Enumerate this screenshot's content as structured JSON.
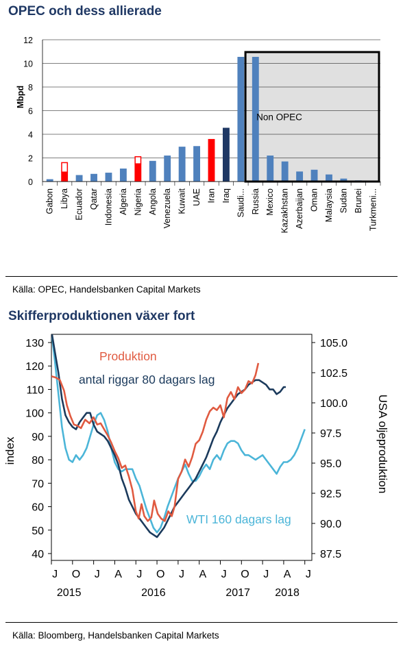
{
  "chart1": {
    "title": "OPEC och dess allierade",
    "source": "Källa: OPEC, Handelsbanken Capital Markets"
  },
  "chart2": {
    "title": "Skifferproduktionen växer fort",
    "source": "Källa: Bloomberg, Handelsbanken Capital Markets"
  },
  "colors": {
    "title": "#1f3864",
    "bar_blue": "#4f81bd",
    "bar_red": "#ff0000",
    "bar_navy": "#1f3864",
    "non_opec_fill": "#e0e0e0",
    "produktion": "#e05a40",
    "riggar": "#1b3a5c",
    "wti": "#4bb5d8"
  },
  "chart_data": [
    {
      "type": "bar",
      "ylabel": "Mbpd",
      "ylim": [
        0,
        12
      ],
      "yticks": [
        0,
        2,
        4,
        6,
        8,
        10,
        12
      ],
      "grid": true,
      "categories": [
        "Gabon",
        "Libya",
        "Ecuador",
        "Qatar",
        "Indonesia",
        "Algeria",
        "Nigeria",
        "Angola",
        "Venezuela",
        "Kuwait",
        "UAE",
        "Iran",
        "Iraq",
        "Saudi...",
        "Russia",
        "Mexico",
        "Kazakhstan",
        "Azerbaijan",
        "Oman",
        "Malaysia",
        "Sudan",
        "Brunei",
        "Turkmeni..."
      ],
      "values": [
        0.2,
        0.8,
        0.55,
        0.65,
        0.75,
        1.1,
        1.5,
        1.75,
        2.2,
        2.95,
        3.0,
        3.6,
        4.55,
        10.55,
        10.55,
        2.2,
        1.7,
        0.85,
        1.0,
        0.6,
        0.25,
        0.1,
        0.05
      ],
      "bar_colors": [
        "blue",
        "red",
        "blue",
        "blue",
        "blue",
        "blue",
        "red",
        "blue",
        "blue",
        "blue",
        "blue",
        "red",
        "navy",
        "blue",
        "blue",
        "blue",
        "blue",
        "blue",
        "blue",
        "blue",
        "blue",
        "blue",
        "blue"
      ],
      "outlined_capacity": [
        {
          "category": "Libya",
          "value": 1.6
        },
        {
          "category": "Nigeria",
          "value": 2.1
        }
      ],
      "annotation": "Non OPEC",
      "non_opec_start": "Russia"
    },
    {
      "type": "line",
      "ylabel": "index",
      "ylim": [
        40,
        130
      ],
      "yticks": [
        40,
        50,
        60,
        70,
        80,
        90,
        100,
        110,
        120,
        130
      ],
      "y2label": "USA oljeproduktion",
      "y2lim": [
        87.5,
        105.0
      ],
      "y2ticks": [
        "87.5",
        "90.0",
        "92.5",
        "95.0",
        "97.5",
        "100.0",
        "102.5",
        "105.0"
      ],
      "xlim": [
        0,
        37
      ],
      "xticks": [
        {
          "x": 0.5,
          "label": "J"
        },
        {
          "x": 3.5,
          "label": "O"
        },
        {
          "x": 6.5,
          "label": "J"
        },
        {
          "x": 9.5,
          "label": "A"
        },
        {
          "x": 12.5,
          "label": "J"
        },
        {
          "x": 15.5,
          "label": "O"
        },
        {
          "x": 18.5,
          "label": "J"
        },
        {
          "x": 21.5,
          "label": "A"
        },
        {
          "x": 24.5,
          "label": "J"
        },
        {
          "x": 27.5,
          "label": "O"
        },
        {
          "x": 30.5,
          "label": "J"
        },
        {
          "x": 33.5,
          "label": "A"
        },
        {
          "x": 36.5,
          "label": "J"
        }
      ],
      "year_labels": [
        {
          "x": 2.5,
          "label": "2015"
        },
        {
          "x": 14.5,
          "label": "2016"
        },
        {
          "x": 26.5,
          "label": "2017"
        },
        {
          "x": 33.5,
          "label": "2018"
        }
      ],
      "series": [
        {
          "name": "Produktion",
          "color": "produktion",
          "axis": "right",
          "points": [
            [
              0.0,
              102.2
            ],
            [
              0.6,
              102.1
            ],
            [
              1.2,
              101.9
            ],
            [
              1.8,
              101.0
            ],
            [
              2.2,
              99.8
            ],
            [
              2.7,
              98.9
            ],
            [
              3.2,
              98.2
            ],
            [
              3.7,
              98.1
            ],
            [
              4.2,
              97.9
            ],
            [
              4.8,
              98.6
            ],
            [
              5.4,
              98.3
            ],
            [
              6.0,
              98.8
            ],
            [
              6.5,
              98.2
            ],
            [
              7.0,
              98.3
            ],
            [
              7.5,
              97.8
            ],
            [
              8.0,
              97.3
            ],
            [
              8.5,
              96.7
            ],
            [
              9.0,
              96.0
            ],
            [
              9.5,
              95.4
            ],
            [
              10.0,
              94.6
            ],
            [
              10.5,
              94.8
            ],
            [
              11.0,
              93.9
            ],
            [
              11.5,
              92.8
            ],
            [
              12.0,
              91.0
            ],
            [
              12.4,
              90.4
            ],
            [
              12.8,
              91.6
            ],
            [
              13.2,
              90.6
            ],
            [
              13.7,
              90.2
            ],
            [
              14.2,
              90.5
            ],
            [
              14.6,
              91.9
            ],
            [
              15.1,
              90.8
            ],
            [
              15.6,
              90.4
            ],
            [
              16.1,
              90.2
            ],
            [
              16.6,
              91.0
            ],
            [
              17.1,
              90.6
            ],
            [
              17.5,
              91.4
            ],
            [
              18.0,
              93.7
            ],
            [
              18.5,
              94.3
            ],
            [
              19.0,
              95.3
            ],
            [
              19.5,
              94.7
            ],
            [
              20.0,
              95.5
            ],
            [
              20.5,
              96.6
            ],
            [
              21.0,
              96.9
            ],
            [
              21.5,
              97.6
            ],
            [
              22.0,
              98.6
            ],
            [
              22.5,
              99.3
            ],
            [
              23.0,
              99.6
            ],
            [
              23.5,
              99.4
            ],
            [
              24.0,
              99.8
            ],
            [
              24.5,
              98.8
            ],
            [
              25.0,
              100.4
            ],
            [
              25.5,
              100.9
            ],
            [
              26.0,
              100.3
            ],
            [
              26.5,
              101.3
            ],
            [
              27.0,
              100.8
            ],
            [
              27.5,
              101.1
            ],
            [
              28.0,
              101.8
            ],
            [
              28.5,
              101.6
            ],
            [
              29.0,
              102.3
            ],
            [
              29.4,
              103.3
            ]
          ]
        },
        {
          "name": "antal riggar 80 dagars lag",
          "color": "riggar",
          "axis": "left",
          "points": [
            [
              0.0,
              135
            ],
            [
              0.5,
              126
            ],
            [
              1.0,
              117
            ],
            [
              1.5,
              106
            ],
            [
              2.0,
              99
            ],
            [
              2.5,
              96
            ],
            [
              3.0,
              94
            ],
            [
              3.5,
              93
            ],
            [
              4.0,
              96
            ],
            [
              4.5,
              98
            ],
            [
              5.0,
              100
            ],
            [
              5.5,
              100
            ],
            [
              6.0,
              95
            ],
            [
              6.5,
              92
            ],
            [
              7.0,
              91
            ],
            [
              7.5,
              90
            ],
            [
              8.0,
              88
            ],
            [
              8.5,
              85
            ],
            [
              9.0,
              82
            ],
            [
              9.5,
              78
            ],
            [
              10.0,
              72
            ],
            [
              10.5,
              68
            ],
            [
              11.0,
              63
            ],
            [
              11.5,
              60
            ],
            [
              12.0,
              57
            ],
            [
              12.5,
              55
            ],
            [
              13.0,
              53
            ],
            [
              13.5,
              51
            ],
            [
              14.0,
              49
            ],
            [
              14.5,
              48
            ],
            [
              15.0,
              47
            ],
            [
              15.5,
              49
            ],
            [
              16.0,
              51
            ],
            [
              16.5,
              54
            ],
            [
              17.0,
              57
            ],
            [
              17.5,
              60
            ],
            [
              18.0,
              62
            ],
            [
              18.5,
              64
            ],
            [
              19.0,
              66
            ],
            [
              19.5,
              68
            ],
            [
              20.0,
              70
            ],
            [
              20.5,
              72
            ],
            [
              21.0,
              75
            ],
            [
              21.5,
              78
            ],
            [
              22.0,
              81
            ],
            [
              22.5,
              85
            ],
            [
              23.0,
              89
            ],
            [
              23.5,
              92
            ],
            [
              24.0,
              96
            ],
            [
              24.5,
              99
            ],
            [
              25.0,
              102
            ],
            [
              25.5,
              104
            ],
            [
              26.0,
              106
            ],
            [
              26.5,
              108
            ],
            [
              27.0,
              109
            ],
            [
              27.5,
              110
            ],
            [
              28.0,
              112
            ],
            [
              28.5,
              113
            ],
            [
              29.0,
              114
            ],
            [
              29.5,
              114
            ],
            [
              30.0,
              113
            ],
            [
              30.5,
              112
            ],
            [
              31.0,
              110
            ],
            [
              31.5,
              110
            ],
            [
              32.0,
              108
            ],
            [
              32.5,
              109
            ],
            [
              33.0,
              111
            ],
            [
              33.3,
              111
            ]
          ]
        },
        {
          "name": "WTI 160 dagars lag",
          "color": "wti",
          "axis": "left",
          "points": [
            [
              0.0,
              135
            ],
            [
              0.5,
              122
            ],
            [
              1.0,
              108
            ],
            [
              1.5,
              94
            ],
            [
              2.0,
              85
            ],
            [
              2.5,
              80
            ],
            [
              3.0,
              79
            ],
            [
              3.5,
              82
            ],
            [
              4.0,
              80
            ],
            [
              4.5,
              82
            ],
            [
              5.0,
              85
            ],
            [
              5.5,
              90
            ],
            [
              6.0,
              95
            ],
            [
              6.5,
              99
            ],
            [
              7.0,
              100
            ],
            [
              7.5,
              97
            ],
            [
              8.0,
              92
            ],
            [
              8.5,
              85
            ],
            [
              9.0,
              79
            ],
            [
              9.5,
              76
            ],
            [
              10.0,
              75
            ],
            [
              10.5,
              76
            ],
            [
              11.0,
              76
            ],
            [
              11.5,
              76
            ],
            [
              12.0,
              72
            ],
            [
              12.5,
              69
            ],
            [
              13.0,
              64
            ],
            [
              13.5,
              59
            ],
            [
              14.0,
              55
            ],
            [
              14.5,
              51
            ],
            [
              15.0,
              49
            ],
            [
              15.5,
              51
            ],
            [
              16.0,
              55
            ],
            [
              16.5,
              60
            ],
            [
              17.0,
              64
            ],
            [
              17.5,
              68
            ],
            [
              18.0,
              72
            ],
            [
              18.5,
              75
            ],
            [
              19.0,
              78
            ],
            [
              19.5,
              74
            ],
            [
              20.0,
              71
            ],
            [
              20.5,
              71
            ],
            [
              21.0,
              73
            ],
            [
              21.5,
              76
            ],
            [
              22.0,
              78
            ],
            [
              22.5,
              76
            ],
            [
              23.0,
              80
            ],
            [
              23.5,
              82
            ],
            [
              24.0,
              80
            ],
            [
              24.5,
              84
            ],
            [
              25.0,
              87
            ],
            [
              25.5,
              88
            ],
            [
              26.0,
              88
            ],
            [
              26.5,
              87
            ],
            [
              27.0,
              84
            ],
            [
              27.5,
              82
            ],
            [
              28.0,
              82
            ],
            [
              28.5,
              81
            ],
            [
              29.0,
              80
            ],
            [
              29.5,
              81
            ],
            [
              30.0,
              82
            ],
            [
              30.5,
              80
            ],
            [
              31.0,
              78
            ],
            [
              31.5,
              76
            ],
            [
              32.0,
              74
            ],
            [
              32.5,
              77
            ],
            [
              33.0,
              79
            ],
            [
              33.5,
              79
            ],
            [
              34.0,
              80
            ],
            [
              34.5,
              82
            ],
            [
              35.0,
              85
            ],
            [
              35.5,
              89
            ],
            [
              36.0,
              93
            ]
          ]
        }
      ]
    }
  ]
}
